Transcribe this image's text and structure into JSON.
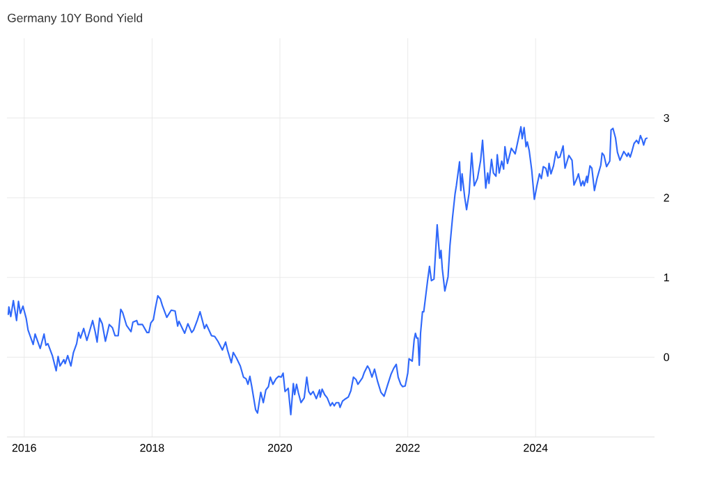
{
  "chart_data": {
    "type": "line",
    "title": "Germany 10Y Bond Yield",
    "xlim": [
      2015.73,
      2025.86
    ],
    "xticks": [
      2016,
      2018,
      2020,
      2022,
      2024
    ],
    "ylim": [
      -1,
      4
    ],
    "yticks": [
      0,
      1,
      2,
      3
    ],
    "grid": true,
    "marker": "none",
    "series": [
      {
        "color": "#2f68fa",
        "x": [
          2015.75,
          2015.76,
          2015.79,
          2015.83,
          2015.88,
          2015.91,
          2015.94,
          2015.98,
          2016.03,
          2016.06,
          2016.14,
          2016.17,
          2016.25,
          2016.31,
          2016.34,
          2016.37,
          2016.44,
          2016.5,
          2016.53,
          2016.56,
          2016.62,
          2016.64,
          2016.68,
          2016.73,
          2016.77,
          2016.82,
          2016.85,
          2016.88,
          2016.93,
          2016.98,
          2017.02,
          2017.07,
          2017.11,
          2017.14,
          2017.18,
          2017.22,
          2017.27,
          2017.33,
          2017.38,
          2017.42,
          2017.47,
          2017.51,
          2017.54,
          2017.6,
          2017.67,
          2017.7,
          2017.76,
          2017.78,
          2017.85,
          2017.92,
          2017.95,
          2017.98,
          2018.02,
          2018.05,
          2018.09,
          2018.13,
          2018.16,
          2018.23,
          2018.3,
          2018.36,
          2018.4,
          2018.42,
          2018.51,
          2018.56,
          2018.62,
          2018.65,
          2018.71,
          2018.75,
          2018.82,
          2018.85,
          2018.93,
          2018.98,
          2019.03,
          2019.1,
          2019.15,
          2019.18,
          2019.24,
          2019.27,
          2019.32,
          2019.38,
          2019.43,
          2019.47,
          2019.5,
          2019.53,
          2019.56,
          2019.62,
          2019.65,
          2019.7,
          2019.74,
          2019.78,
          2019.82,
          2019.85,
          2019.89,
          2019.94,
          2019.98,
          2020.02,
          2020.05,
          2020.08,
          2020.13,
          2020.17,
          2020.21,
          2020.23,
          2020.26,
          2020.29,
          2020.33,
          2020.38,
          2020.42,
          2020.45,
          2020.48,
          2020.52,
          2020.57,
          2020.62,
          2020.63,
          2020.66,
          2020.7,
          2020.74,
          2020.79,
          2020.82,
          2020.85,
          2020.88,
          2020.92,
          2020.94,
          2020.98,
          2021.03,
          2021.07,
          2021.11,
          2021.15,
          2021.19,
          2021.22,
          2021.29,
          2021.32,
          2021.37,
          2021.4,
          2021.44,
          2021.48,
          2021.53,
          2021.58,
          2021.63,
          2021.68,
          2021.74,
          2021.78,
          2021.82,
          2021.85,
          2021.89,
          2021.92,
          2021.96,
          2022.0,
          2022.02,
          2022.07,
          2022.1,
          2022.12,
          2022.14,
          2022.16,
          2022.18,
          2022.2,
          2022.23,
          2022.25,
          2022.31,
          2022.34,
          2022.37,
          2022.41,
          2022.46,
          2022.5,
          2022.52,
          2022.54,
          2022.58,
          2022.63,
          2022.66,
          2022.7,
          2022.74,
          2022.76,
          2022.81,
          2022.83,
          2022.85,
          2022.89,
          2022.92,
          2022.96,
          2023.0,
          2023.04,
          2023.09,
          2023.14,
          2023.17,
          2023.22,
          2023.25,
          2023.27,
          2023.31,
          2023.34,
          2023.38,
          2023.4,
          2023.43,
          2023.47,
          2023.5,
          2023.52,
          2023.56,
          2023.62,
          2023.68,
          2023.77,
          2023.79,
          2023.82,
          2023.85,
          2023.87,
          2023.9,
          2023.94,
          2023.98,
          2024.02,
          2024.06,
          2024.09,
          2024.12,
          2024.16,
          2024.19,
          2024.21,
          2024.24,
          2024.28,
          2024.32,
          2024.35,
          2024.38,
          2024.43,
          2024.46,
          2024.52,
          2024.57,
          2024.6,
          2024.65,
          2024.67,
          2024.71,
          2024.74,
          2024.76,
          2024.8,
          2024.81,
          2024.85,
          2024.88,
          2024.92,
          2024.96,
          2025.02,
          2025.04,
          2025.07,
          2025.11,
          2025.16,
          2025.18,
          2025.21,
          2025.25,
          2025.28,
          2025.32,
          2025.38,
          2025.43,
          2025.45,
          2025.48,
          2025.51,
          2025.54,
          2025.58,
          2025.61,
          2025.64,
          2025.67,
          2025.69,
          2025.72,
          2025.75
        ],
        "values": [
          0.53,
          0.63,
          0.51,
          0.71,
          0.46,
          0.7,
          0.55,
          0.64,
          0.49,
          0.34,
          0.16,
          0.29,
          0.11,
          0.29,
          0.15,
          0.17,
          0.02,
          -0.17,
          0.01,
          -0.11,
          -0.03,
          -0.08,
          0.02,
          -0.11,
          0.06,
          0.17,
          0.31,
          0.24,
          0.36,
          0.21,
          0.32,
          0.46,
          0.32,
          0.19,
          0.49,
          0.42,
          0.2,
          0.41,
          0.37,
          0.27,
          0.27,
          0.6,
          0.56,
          0.4,
          0.32,
          0.44,
          0.46,
          0.41,
          0.41,
          0.31,
          0.31,
          0.43,
          0.47,
          0.61,
          0.77,
          0.73,
          0.65,
          0.5,
          0.59,
          0.58,
          0.39,
          0.45,
          0.3,
          0.42,
          0.31,
          0.34,
          0.47,
          0.57,
          0.36,
          0.41,
          0.27,
          0.26,
          0.2,
          0.09,
          0.19,
          0.09,
          -0.07,
          0.06,
          -0.01,
          -0.11,
          -0.25,
          -0.27,
          -0.34,
          -0.24,
          -0.37,
          -0.66,
          -0.7,
          -0.44,
          -0.57,
          -0.41,
          -0.37,
          -0.25,
          -0.34,
          -0.27,
          -0.24,
          -0.25,
          -0.2,
          -0.43,
          -0.39,
          -0.72,
          -0.33,
          -0.47,
          -0.34,
          -0.45,
          -0.57,
          -0.51,
          -0.25,
          -0.43,
          -0.47,
          -0.43,
          -0.52,
          -0.41,
          -0.5,
          -0.4,
          -0.47,
          -0.51,
          -0.61,
          -0.57,
          -0.61,
          -0.57,
          -0.57,
          -0.63,
          -0.55,
          -0.52,
          -0.5,
          -0.42,
          -0.25,
          -0.28,
          -0.34,
          -0.26,
          -0.19,
          -0.11,
          -0.15,
          -0.25,
          -0.15,
          -0.31,
          -0.44,
          -0.49,
          -0.36,
          -0.21,
          -0.14,
          -0.09,
          -0.25,
          -0.34,
          -0.37,
          -0.36,
          -0.2,
          -0.02,
          -0.05,
          0.22,
          0.3,
          0.24,
          0.24,
          -0.1,
          0.3,
          0.57,
          0.57,
          0.96,
          1.14,
          0.96,
          0.98,
          1.66,
          1.24,
          1.34,
          1.11,
          0.83,
          1.01,
          1.4,
          1.75,
          2.05,
          2.15,
          2.45,
          2.09,
          2.3,
          2.01,
          1.85,
          2.06,
          2.56,
          2.15,
          2.24,
          2.47,
          2.72,
          2.12,
          2.31,
          2.18,
          2.48,
          2.31,
          2.27,
          2.54,
          2.31,
          2.46,
          2.36,
          2.64,
          2.43,
          2.62,
          2.55,
          2.89,
          2.74,
          2.88,
          2.64,
          2.7,
          2.59,
          2.34,
          1.98,
          2.15,
          2.3,
          2.24,
          2.39,
          2.37,
          2.27,
          2.43,
          2.3,
          2.4,
          2.58,
          2.5,
          2.51,
          2.65,
          2.37,
          2.53,
          2.47,
          2.16,
          2.25,
          2.3,
          2.15,
          2.21,
          2.15,
          2.27,
          2.19,
          2.4,
          2.37,
          2.09,
          2.24,
          2.41,
          2.56,
          2.53,
          2.39,
          2.46,
          2.85,
          2.87,
          2.75,
          2.57,
          2.47,
          2.58,
          2.52,
          2.56,
          2.51,
          2.59,
          2.68,
          2.72,
          2.68,
          2.78,
          2.72,
          2.66,
          2.74,
          2.75
        ]
      }
    ]
  }
}
